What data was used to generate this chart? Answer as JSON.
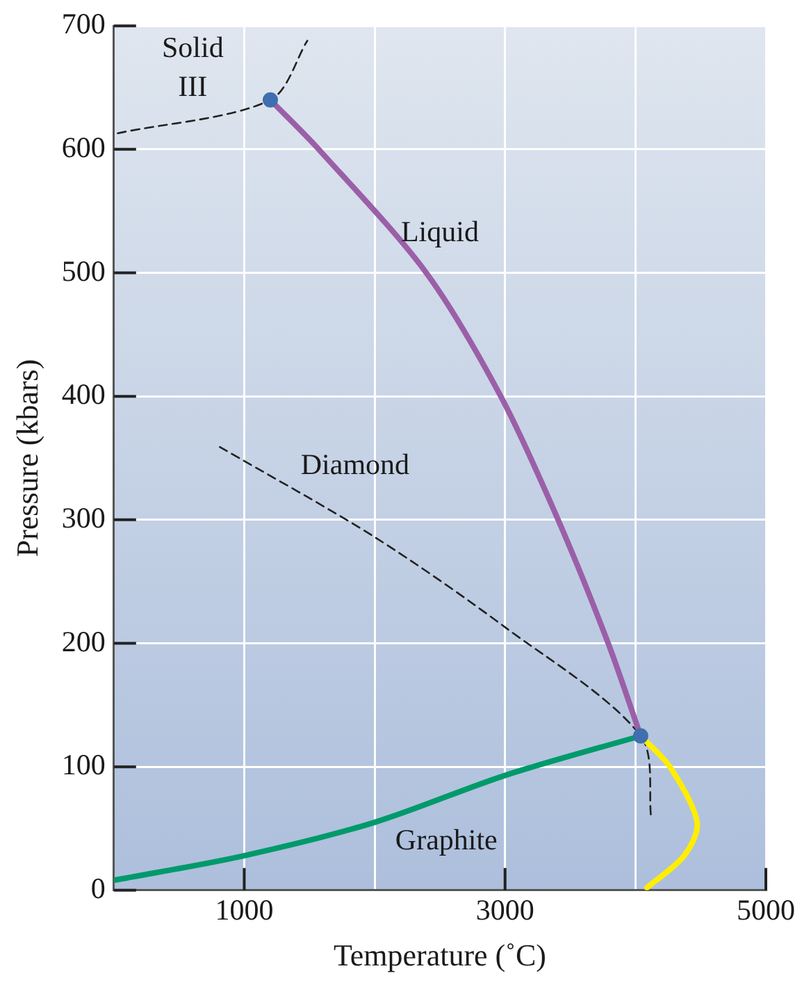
{
  "chart_data": {
    "type": "line",
    "xlabel": "Temperature (˚C)",
    "ylabel": "Pressure (kbars)",
    "xlim": [
      0,
      5000
    ],
    "ylim": [
      0,
      700
    ],
    "xticks": [
      1000,
      {
        "value": 2000,
        "label": null
      },
      3000,
      {
        "value": 4000,
        "label": null
      },
      5000
    ],
    "yticks": [
      0,
      100,
      200,
      300,
      400,
      500,
      600,
      700
    ],
    "grid": true,
    "legend": false,
    "marker": "none",
    "series": [
      {
        "color": "#9b5fa8",
        "x": [
          1200,
          1571,
          2396,
          2967,
          3407,
          3791,
          4040
        ],
        "values": [
          640,
          600,
          500,
          400,
          300,
          200,
          125
        ]
      },
      {
        "color": "#009a6b",
        "x": [
          0,
          1000,
          2000,
          3000,
          4040
        ],
        "values": [
          8,
          28,
          55,
          93,
          125
        ]
      },
      {
        "color": "#ffee00",
        "x": [
          4040,
          4264,
          4473,
          4374,
          4088
        ],
        "values": [
          125,
          100,
          55,
          28,
          2
        ]
      },
      {
        "color": "#222222",
        "line_style": "dashed",
        "x": [
          813,
          2000,
          3000,
          4040,
          4121
        ],
        "values": [
          359,
          286,
          213,
          125,
          58
        ]
      },
      {
        "color": "#222222",
        "line_style": "dashed",
        "x": [
          30,
          1200,
          1484
        ],
        "values": [
          613,
          640,
          688
        ]
      },
      {
        "type": "scatter",
        "marker": "circle",
        "color": "#3f6fae",
        "x": [
          1200,
          4040
        ],
        "values": [
          640,
          125
        ]
      }
    ],
    "annotations": [
      "Solid\nIII",
      "Liquid",
      "Diamond",
      "Graphite"
    ]
  }
}
